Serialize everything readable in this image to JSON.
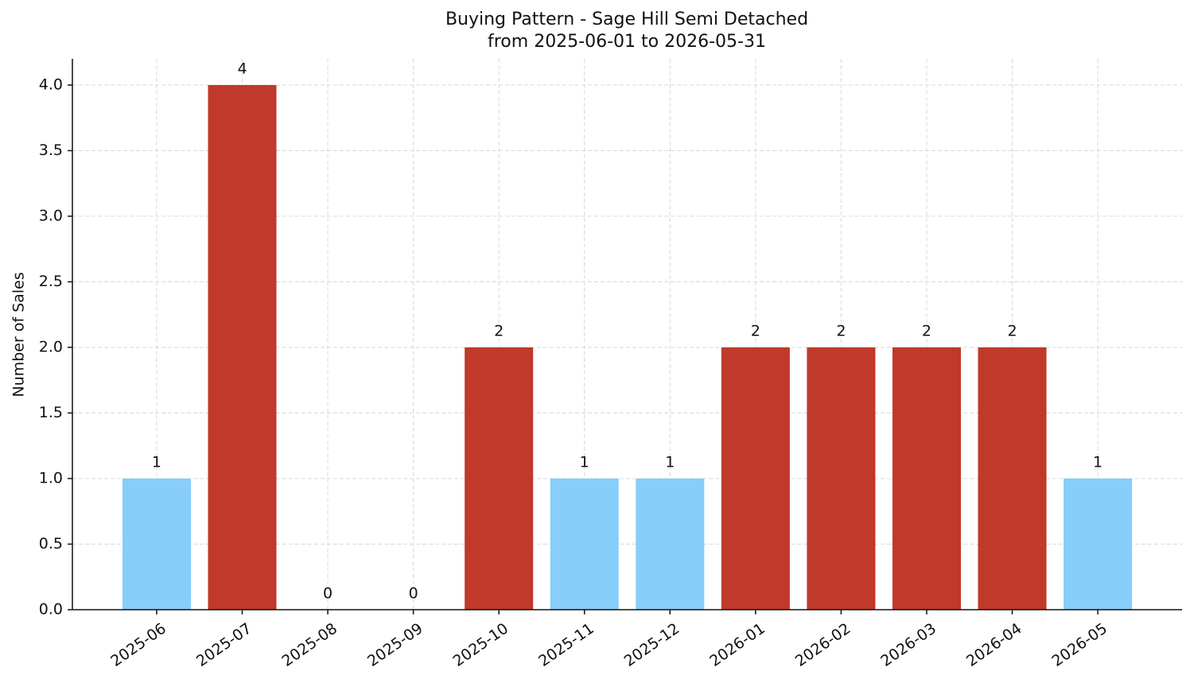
{
  "chart_data": {
    "type": "bar",
    "title": "Buying Pattern - Sage Hill Semi Detached",
    "subtitle": "from 2025-06-01 to 2026-05-31",
    "y_label": "Number of Sales",
    "categories": [
      "2025-06",
      "2025-07",
      "2025-08",
      "2025-09",
      "2025-10",
      "2025-11",
      "2025-12",
      "2026-01",
      "2026-02",
      "2026-03",
      "2026-04",
      "2026-05"
    ],
    "values": [
      1,
      4,
      0,
      0,
      2,
      1,
      1,
      2,
      2,
      2,
      2,
      1
    ],
    "colors": [
      "#87cefa",
      "#c0392b",
      "#87cefa",
      "#87cefa",
      "#c0392b",
      "#87cefa",
      "#87cefa",
      "#c0392b",
      "#c0392b",
      "#c0392b",
      "#c0392b",
      "#87cefa"
    ],
    "ylim": [
      0,
      4.2
    ],
    "yticks": [
      {
        "value": 0,
        "label": "0.0"
      },
      {
        "value": 0.5,
        "label": "0.5"
      },
      {
        "value": 1,
        "label": "1.0"
      },
      {
        "value": 1.5,
        "label": "1.5"
      },
      {
        "value": 2,
        "label": "2.0"
      },
      {
        "value": 2.5,
        "label": "2.5"
      },
      {
        "value": 3,
        "label": "3.0"
      },
      {
        "value": 3.5,
        "label": "3.5"
      },
      {
        "value": 4,
        "label": "4.0"
      }
    ],
    "grid": true
  }
}
